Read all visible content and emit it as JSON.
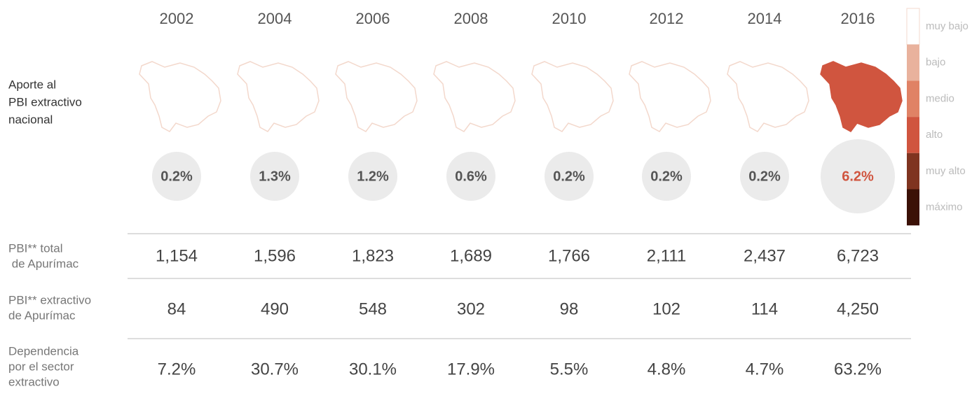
{
  "title_lines": [
    "Aporte al",
    "PBI extractivo",
    "nacional"
  ],
  "columns": [
    {
      "year": "2002",
      "share": "0.2%",
      "map_fill": "#ffffff",
      "share_color": "#555555",
      "large": false
    },
    {
      "year": "2004",
      "share": "1.3%",
      "map_fill": "#ffffff",
      "share_color": "#555555",
      "large": false
    },
    {
      "year": "2006",
      "share": "1.2%",
      "map_fill": "#ffffff",
      "share_color": "#555555",
      "large": false
    },
    {
      "year": "2008",
      "share": "0.6%",
      "map_fill": "#ffffff",
      "share_color": "#555555",
      "large": false
    },
    {
      "year": "2010",
      "share": "0.2%",
      "map_fill": "#ffffff",
      "share_color": "#555555",
      "large": false
    },
    {
      "year": "2012",
      "share": "0.2%",
      "map_fill": "#ffffff",
      "share_color": "#555555",
      "large": false
    },
    {
      "year": "2014",
      "share": "0.2%",
      "map_fill": "#ffffff",
      "share_color": "#555555",
      "large": false
    },
    {
      "year": "2016",
      "share": "6.2%",
      "map_fill": "#d0553f",
      "share_color": "#d0553f",
      "large": true
    }
  ],
  "rows": [
    {
      "label_lines": [
        "PBI** total",
        " de Apurímac"
      ],
      "values": [
        "1,154",
        "1,596",
        "1,823",
        "1,689",
        "1,766",
        "2,111",
        "2,437",
        "6,723"
      ]
    },
    {
      "label_lines": [
        "PBI** extractivo",
        "de Apurímac"
      ],
      "values": [
        "84",
        "490",
        "548",
        "302",
        "98",
        "102",
        "114",
        "4,250"
      ]
    },
    {
      "label_lines": [
        "Dependencia",
        "por el sector",
        "extractivo"
      ],
      "values": [
        "7.2%",
        "30.7%",
        "30.1%",
        "17.9%",
        "5.5%",
        "4.8%",
        "4.7%",
        "63.2%"
      ]
    }
  ],
  "legend": [
    {
      "label": "muy bajo",
      "color": "#ffffff"
    },
    {
      "label": "bajo",
      "color": "#e9b29d"
    },
    {
      "label": "medio",
      "color": "#e08265"
    },
    {
      "label": "alto",
      "color": "#d0553f"
    },
    {
      "label": "muy alto",
      "color": "#7f3420"
    },
    {
      "label": "máximo",
      "color": "#3b1106"
    }
  ]
}
